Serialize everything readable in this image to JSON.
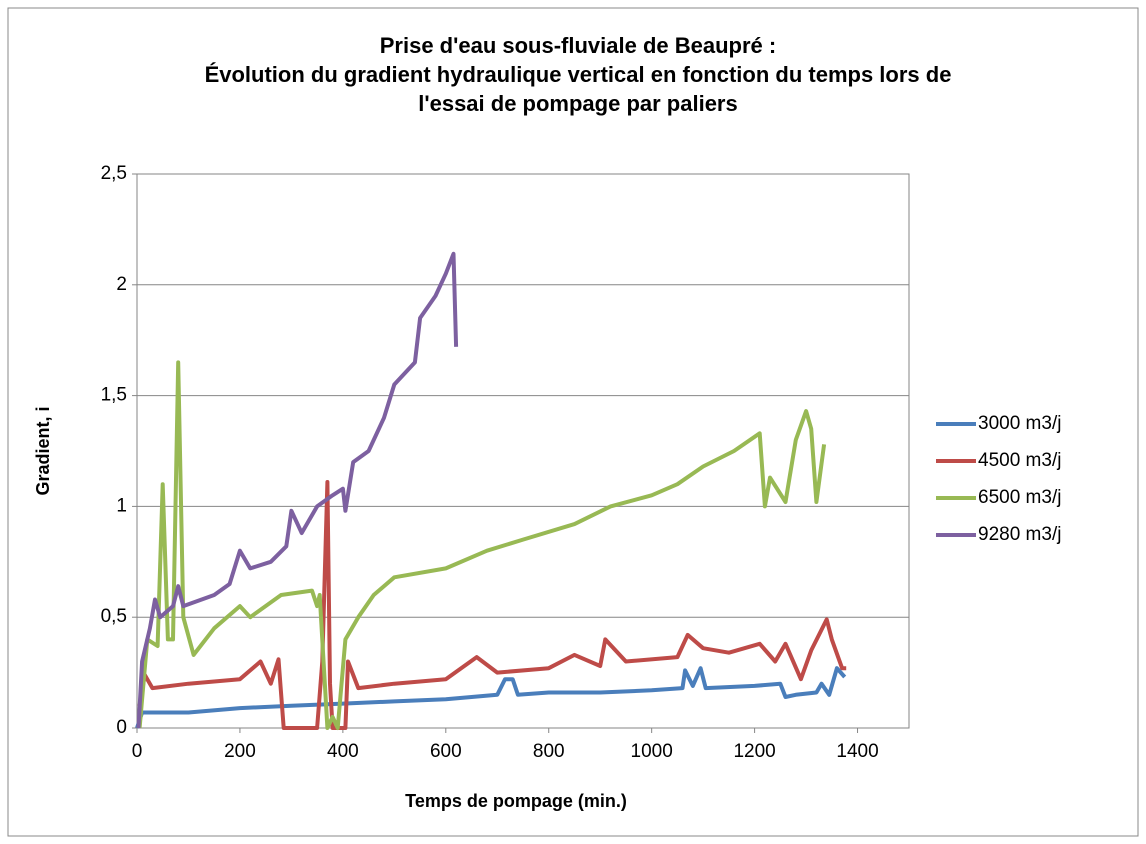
{
  "chart_data": {
    "type": "line",
    "title": [
      "Prise d'eau sous-fluviale de Beaupré :",
      "Évolution du gradient hydraulique vertical en fonction du temps lors de",
      "l'essai de pompage par paliers"
    ],
    "xlabel": "Temps de pompage (min.)",
    "ylabel": "Gradient, i",
    "xlim": [
      0,
      1500
    ],
    "xticks": [
      0,
      200,
      400,
      600,
      800,
      1000,
      1200,
      1400
    ],
    "ylim": [
      0,
      2.5
    ],
    "yticks": [
      0,
      {
        "value": 0.5,
        "label": "0,5"
      },
      1,
      {
        "value": 1.5,
        "label": "1,5"
      },
      2,
      {
        "value": 2.5,
        "label": "2,5"
      }
    ],
    "grid": true,
    "legend": "right",
    "series": [
      {
        "name": "3000 m3/j",
        "color": "#4a7ebb",
        "x": [
          0,
          10,
          50,
          100,
          200,
          300,
          400,
          500,
          600,
          700,
          715,
          730,
          740,
          800,
          900,
          1000,
          1060,
          1065,
          1080,
          1095,
          1105,
          1200,
          1250,
          1260,
          1280,
          1320,
          1330,
          1345,
          1360,
          1375
        ],
        "values": [
          0,
          0.07,
          0.07,
          0.07,
          0.09,
          0.1,
          0.11,
          0.12,
          0.13,
          0.15,
          0.22,
          0.22,
          0.15,
          0.16,
          0.16,
          0.17,
          0.18,
          0.26,
          0.19,
          0.27,
          0.18,
          0.19,
          0.2,
          0.14,
          0.15,
          0.16,
          0.2,
          0.15,
          0.27,
          0.23
        ]
      },
      {
        "name": "4500 m3/j",
        "color": "#be4b48",
        "x": [
          5,
          15,
          30,
          100,
          200,
          240,
          260,
          275,
          285,
          350,
          360,
          370,
          375,
          380,
          405,
          410,
          430,
          500,
          600,
          660,
          700,
          800,
          850,
          900,
          910,
          950,
          1050,
          1070,
          1100,
          1150,
          1210,
          1240,
          1260,
          1290,
          1310,
          1340,
          1350,
          1370,
          1378
        ],
        "values": [
          0.1,
          0.24,
          0.18,
          0.2,
          0.22,
          0.3,
          0.2,
          0.31,
          0,
          0,
          0.3,
          1.11,
          0.2,
          0,
          0,
          0.3,
          0.18,
          0.2,
          0.22,
          0.32,
          0.25,
          0.27,
          0.33,
          0.28,
          0.4,
          0.3,
          0.32,
          0.42,
          0.36,
          0.34,
          0.38,
          0.3,
          0.38,
          0.22,
          0.35,
          0.49,
          0.4,
          0.27,
          0.27
        ]
      },
      {
        "name": "6500 m3/j",
        "color": "#98b954",
        "x": [
          5,
          20,
          40,
          50,
          60,
          70,
          80,
          90,
          110,
          150,
          200,
          220,
          280,
          340,
          350,
          355,
          370,
          380,
          390,
          405,
          430,
          460,
          500,
          600,
          680,
          750,
          850,
          920,
          1000,
          1050,
          1100,
          1160,
          1210,
          1220,
          1230,
          1260,
          1280,
          1300,
          1310,
          1320,
          1335
        ],
        "values": [
          0,
          0.4,
          0.37,
          1.1,
          0.4,
          0.4,
          1.65,
          0.5,
          0.33,
          0.45,
          0.55,
          0.5,
          0.6,
          0.62,
          0.55,
          0.6,
          0,
          0.05,
          0,
          0.4,
          0.5,
          0.6,
          0.68,
          0.72,
          0.8,
          0.85,
          0.92,
          1.0,
          1.05,
          1.1,
          1.18,
          1.25,
          1.33,
          1.0,
          1.13,
          1.02,
          1.3,
          1.43,
          1.35,
          1.02,
          1.28
        ]
      },
      {
        "name": "9280 m3/j",
        "color": "#7d60a0",
        "x": [
          3,
          10,
          25,
          35,
          45,
          70,
          80,
          90,
          150,
          180,
          200,
          220,
          260,
          290,
          300,
          320,
          350,
          380,
          400,
          405,
          420,
          450,
          480,
          500,
          540,
          550,
          580,
          600,
          615,
          620
        ],
        "values": [
          0,
          0.3,
          0.45,
          0.58,
          0.5,
          0.55,
          0.64,
          0.55,
          0.6,
          0.65,
          0.8,
          0.72,
          0.75,
          0.82,
          0.98,
          0.88,
          1.0,
          1.05,
          1.08,
          0.98,
          1.2,
          1.25,
          1.4,
          1.55,
          1.65,
          1.85,
          1.95,
          2.05,
          2.14,
          1.72
        ]
      }
    ]
  }
}
